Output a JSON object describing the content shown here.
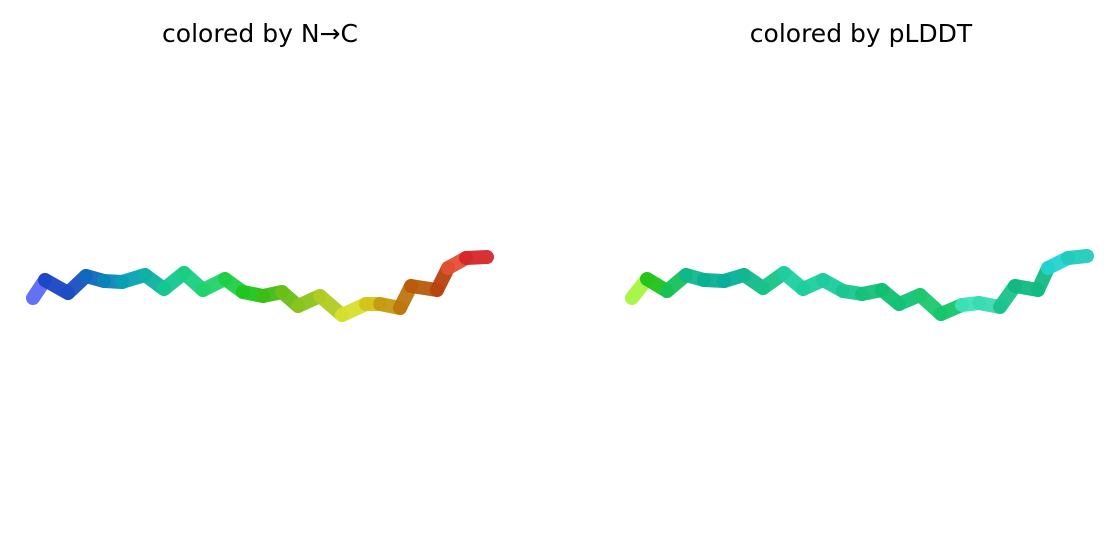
{
  "panels": [
    {
      "title": "colored by N→C",
      "segment_colors": [
        "#5b6af5",
        "#1a45c4",
        "#1c4fc0",
        "#0d6abf",
        "#0a86b8",
        "#06a2b4",
        "#0db3a4",
        "#14c890",
        "#19cf80",
        "#20d46b",
        "#1fcf45",
        "#1fc51e",
        "#3ebd15",
        "#6bbe18",
        "#8cc31e",
        "#b3cc22",
        "#d7e02e",
        "#d6c418",
        "#c69a10",
        "#bc760d",
        "#b85a0d",
        "#b8430e",
        "#e25034",
        "#d5262b",
        "#d21f3c"
      ]
    },
    {
      "title": "colored by pLDDT",
      "segment_colors": [
        "#a6f542",
        "#20c31a",
        "#15c159",
        "#10b88c",
        "#0ab191",
        "#06b099",
        "#11b98e",
        "#18c487",
        "#1fcfa0",
        "#1ccf9c",
        "#1ecba0",
        "#1ac790",
        "#16c178",
        "#10bf70",
        "#13c278",
        "#1cc86e",
        "#15c66a",
        "#3de3b8",
        "#38dcb2",
        "#1ac28a",
        "#10b980",
        "#12bb82",
        "#22d4d2",
        "#21ccbc",
        "#20cf9f"
      ]
    }
  ]
}
